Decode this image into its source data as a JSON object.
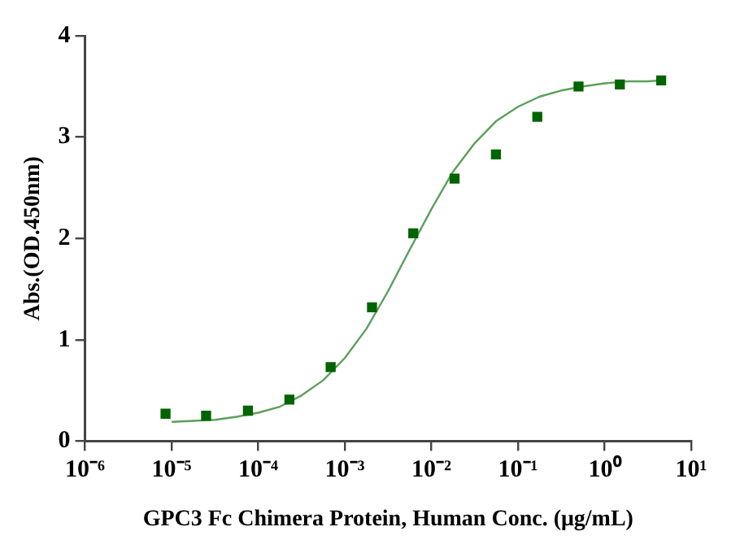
{
  "chart_data": {
    "type": "scatter",
    "xlabel": "GPC3 Fc Chimera Protein, Human Conc. (μg/mL)",
    "ylabel": "Abs.(OD.450nm)",
    "log": "x",
    "xlim": [
      1e-06,
      10
    ],
    "ylim": [
      0,
      4
    ],
    "xticks": [
      {
        "value": 1e-06,
        "label": "10⁻⁶"
      },
      {
        "value": 1e-05,
        "label": "10⁻⁵"
      },
      {
        "value": 0.0001,
        "label": "10⁻⁴"
      },
      {
        "value": 0.001,
        "label": "10⁻³"
      },
      {
        "value": 0.01,
        "label": "10⁻²"
      },
      {
        "value": 0.1,
        "label": "10⁻¹"
      },
      {
        "value": 1,
        "label": "10⁰"
      },
      {
        "value": 10,
        "label": "10¹"
      }
    ],
    "yticks": [
      0,
      1,
      2,
      3,
      4
    ],
    "grid": false,
    "legend": false,
    "series": [
      {
        "color": "#006400",
        "marker": "square",
        "x": [
          8.5e-06,
          2.5e-05,
          7.6e-05,
          0.000229,
          0.000686,
          0.00206,
          0.00617,
          0.0185,
          0.0556,
          0.167,
          0.5,
          1.5,
          4.5
        ],
        "values": [
          0.27,
          0.25,
          0.3,
          0.41,
          0.73,
          1.32,
          2.05,
          2.59,
          2.83,
          3.2,
          3.5,
          3.52,
          3.56
        ]
      },
      {
        "type": "line",
        "color": "#5aa05a",
        "marker": "none",
        "line_style": "solid",
        "x": [
          1e-05,
          1.78e-05,
          3.16e-05,
          5.62e-05,
          0.0001,
          0.000178,
          0.000316,
          0.000562,
          0.001,
          0.00178,
          0.00316,
          0.00562,
          0.01,
          0.0178,
          0.0316,
          0.0562,
          0.1,
          0.178,
          0.316,
          0.562,
          1,
          1.78,
          3.16,
          4.47
        ],
        "values": [
          0.19,
          0.2,
          0.21,
          0.24,
          0.28,
          0.34,
          0.45,
          0.6,
          0.82,
          1.11,
          1.48,
          1.89,
          2.29,
          2.66,
          2.94,
          3.16,
          3.3,
          3.4,
          3.46,
          3.5,
          3.53,
          3.55,
          3.55,
          3.56
        ]
      }
    ]
  }
}
